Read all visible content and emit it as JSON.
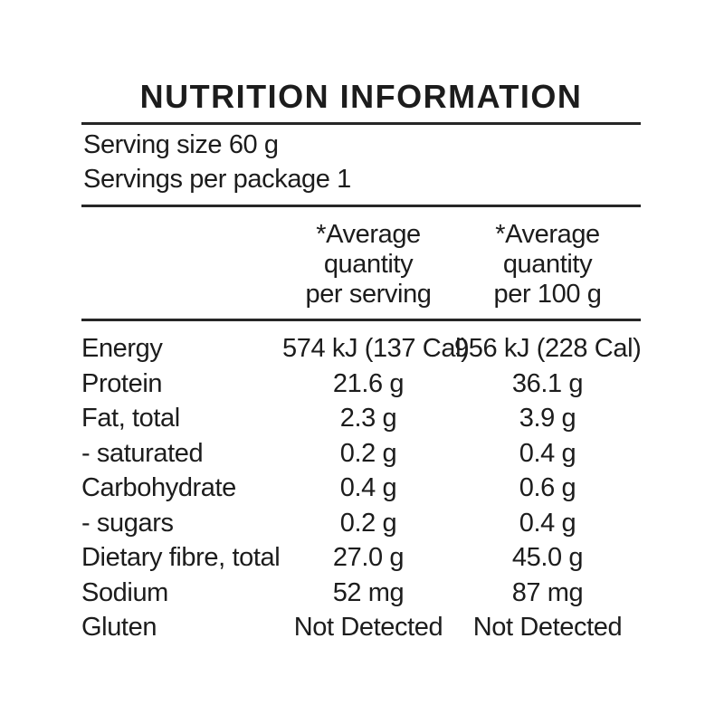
{
  "panel": {
    "title": "NUTRITION INFORMATION",
    "serving_size_line": "Serving size 60 g",
    "servings_per_package_line": "Servings per package 1",
    "columns": [
      {
        "lines": [
          "*Average",
          "quantity",
          "per serving"
        ]
      },
      {
        "lines": [
          "*Average",
          "quantity",
          "per 100 g"
        ]
      }
    ],
    "rows": [
      {
        "name": "Energy",
        "per_serving": "574 kJ (137 Cal)",
        "per_100g": "956 kJ (228 Cal)"
      },
      {
        "name": "Protein",
        "per_serving": "21.6 g",
        "per_100g": "36.1 g"
      },
      {
        "name": "Fat, total",
        "per_serving": "2.3 g",
        "per_100g": "3.9 g"
      },
      {
        "name": "- saturated",
        "per_serving": "0.2 g",
        "per_100g": "0.4 g"
      },
      {
        "name": "Carbohydrate",
        "per_serving": "0.4 g",
        "per_100g": "0.6 g"
      },
      {
        "name": "- sugars",
        "per_serving": "0.2 g",
        "per_100g": "0.4 g"
      },
      {
        "name": "Dietary fibre, total",
        "per_serving": "27.0 g",
        "per_100g": "45.0 g"
      },
      {
        "name": "Sodium",
        "per_serving": "52 mg",
        "per_100g": "87 mg"
      },
      {
        "name": "Gluten",
        "per_serving": "Not Detected",
        "per_100g": "Not Detected"
      }
    ],
    "colors": {
      "text": "#1c1c1c",
      "rule": "#262626",
      "background": "#ffffff"
    }
  }
}
